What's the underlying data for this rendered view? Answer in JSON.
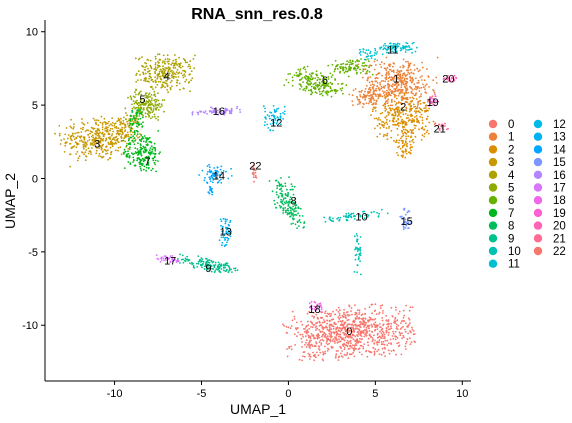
{
  "chart_data": {
    "type": "scatter",
    "title": "RNA_snn_res.0.8",
    "xlabel": "UMAP_1",
    "ylabel": "UMAP_2",
    "xlim": [
      -14,
      10.5
    ],
    "ylim": [
      -13.8,
      10.8
    ],
    "xticks": [
      -10,
      -5,
      0,
      5,
      10
    ],
    "yticks": [
      -10,
      -5,
      0,
      5,
      10
    ],
    "grid": false,
    "legend_position": "right",
    "legend_columns": 2,
    "clusters": [
      {
        "name": "0",
        "label": "0",
        "color": "#F8766D",
        "label_pos": [
          3.5,
          -10.4
        ]
      },
      {
        "name": "1",
        "label": "1",
        "color": "#EC8239",
        "label_pos": [
          6.2,
          6.8
        ]
      },
      {
        "name": "2",
        "label": "2",
        "color": "#DB8E00",
        "label_pos": [
          6.6,
          4.9
        ]
      },
      {
        "name": "3",
        "label": "3",
        "color": "#C79800",
        "label_pos": [
          -11.0,
          2.4
        ]
      },
      {
        "name": "4",
        "label": "4",
        "color": "#AEA200",
        "label_pos": [
          -7.0,
          7.0
        ]
      },
      {
        "name": "5",
        "label": "5",
        "color": "#8FAA00",
        "label_pos": [
          -8.4,
          5.4
        ]
      },
      {
        "name": "6",
        "label": "6",
        "color": "#64B200",
        "label_pos": [
          2.1,
          6.7
        ]
      },
      {
        "name": "7",
        "label": "7",
        "color": "#00B81B",
        "label_pos": [
          -8.1,
          1.2
        ]
      },
      {
        "name": "8",
        "label": "8",
        "color": "#00BD5C",
        "label_pos": [
          0.3,
          -1.5
        ]
      },
      {
        "name": "9",
        "label": "9",
        "color": "#00C08E",
        "label_pos": [
          -4.6,
          -6.1
        ]
      },
      {
        "name": "10",
        "label": "10",
        "color": "#00C1B2",
        "label_pos": [
          4.2,
          -2.6
        ]
      },
      {
        "name": "11",
        "label": "11",
        "color": "#00BFD0",
        "label_pos": [
          6.0,
          8.8
        ]
      },
      {
        "name": "12",
        "label": "12",
        "color": "#00BAE6",
        "label_pos": [
          -0.7,
          3.8
        ]
      },
      {
        "name": "13",
        "label": "13",
        "color": "#00B2F4",
        "label_pos": [
          -3.6,
          -3.6
        ]
      },
      {
        "name": "14",
        "label": "14",
        "color": "#00A6FF",
        "label_pos": [
          -4.0,
          0.2
        ]
      },
      {
        "name": "15",
        "label": "15",
        "color": "#7C96FF",
        "label_pos": [
          6.8,
          -2.9
        ]
      },
      {
        "name": "16",
        "label": "16",
        "color": "#B385FF",
        "label_pos": [
          -4.0,
          4.6
        ]
      },
      {
        "name": "17",
        "label": "17",
        "color": "#D874FD",
        "label_pos": [
          -6.8,
          -5.6
        ]
      },
      {
        "name": "18",
        "label": "18",
        "color": "#EF67EB",
        "label_pos": [
          1.5,
          -8.9
        ]
      },
      {
        "name": "19",
        "label": "19",
        "color": "#FD61D3",
        "label_pos": [
          8.3,
          5.2
        ]
      },
      {
        "name": "20",
        "label": "20",
        "color": "#FF63B6",
        "label_pos": [
          9.2,
          6.8
        ]
      },
      {
        "name": "21",
        "label": "21",
        "color": "#FF6B94",
        "label_pos": [
          8.7,
          3.4
        ]
      },
      {
        "name": "22",
        "label": "22",
        "color": "#F8766D",
        "label_pos": [
          -1.9,
          0.9
        ]
      }
    ]
  }
}
